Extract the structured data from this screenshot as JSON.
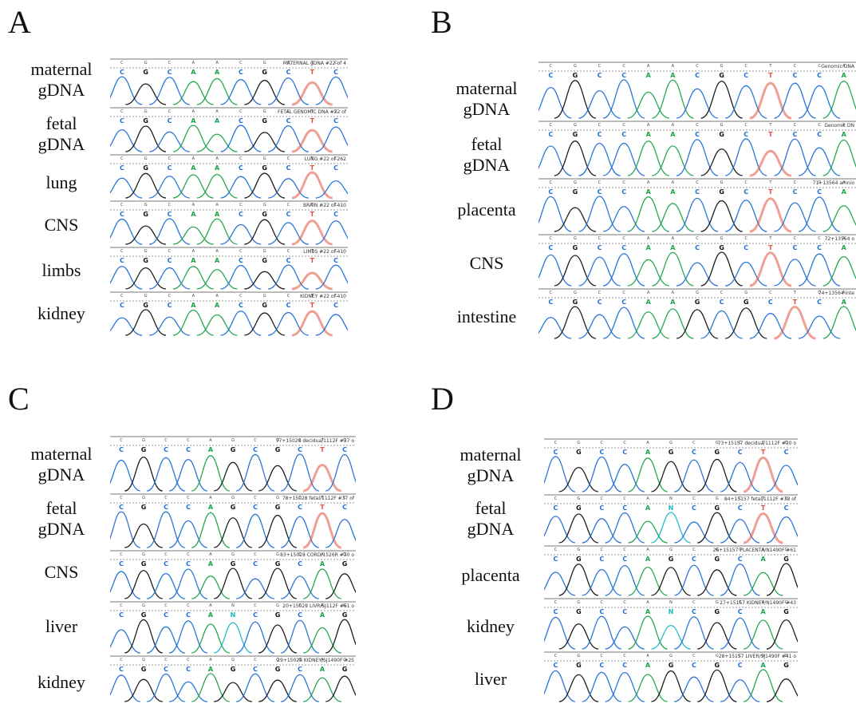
{
  "colors": {
    "A": "#1aa34a",
    "C": "#1f6fd6",
    "G": "#111111",
    "T": "#e0523e",
    "N": "#19b6c8"
  },
  "panels": [
    {
      "letter": "A",
      "tracks": [
        {
          "label": [
            "maternal",
            "gDNA"
          ],
          "header": "MATERNAL gDNA #22 of 4",
          "bases": "CGCAACGCTC"
        },
        {
          "label": [
            "fetal",
            "gDNA"
          ],
          "header": "FETAL GENOMIC DNA #22 of",
          "bases": "CGCAACGCTC"
        },
        {
          "label": [
            "lung"
          ],
          "header": "LUNG #22 of 262",
          "bases": "CGCAACGCTC"
        },
        {
          "label": [
            "CNS"
          ],
          "header": "BRAIN #22 of 410",
          "bases": "CGCAACGCTC"
        },
        {
          "label": [
            "limbs"
          ],
          "header": "LIMBS #22 of 410",
          "bases": "CGCAACGCTC"
        },
        {
          "label": [
            "kidney"
          ],
          "header": "KIDNEY #22 of 410",
          "bases": "CGCAACGCTC"
        }
      ]
    },
    {
      "letter": "B",
      "tracks": [
        {
          "label": [
            "maternal",
            "gDNA"
          ],
          "header": "Genomic DNA",
          "bases": "CGCCAACGCTCCA"
        },
        {
          "label": [
            "fetal",
            "gDNA"
          ],
          "header": "Genomic DN",
          "bases": "CGCCAACGCTCCA"
        },
        {
          "label": [
            "placenta"
          ],
          "header": "71+13564 amnio",
          "bases": "CGCCAACGCTCCA"
        },
        {
          "label": [
            "CNS"
          ],
          "header": "72+13564 o",
          "bases": "CGCCAACGCTCCA"
        },
        {
          "label": [
            "intestine"
          ],
          "header": "74+13564 inte",
          "bases": "CGCCAAGCGCTCA"
        }
      ]
    },
    {
      "letter": "C",
      "tracks": [
        {
          "label": [
            "maternal",
            "gDNA"
          ],
          "header": "77+15028 decidua/1112F #37 o",
          "bases": "CGCCAGCGCTC"
        },
        {
          "label": [
            "fetal",
            "gDNA"
          ],
          "header": "78+15028 fetal/1112F #37 of",
          "bases": "CGCCAGCGCTC"
        },
        {
          "label": [
            "CNS"
          ],
          "header": "83+15028 CORD/1526R #30 o",
          "bases": "CGCCAGCGCAG"
        },
        {
          "label": [
            "liver"
          ],
          "header": "20+15028 LIVR/SJ112F #61 o",
          "bases": "CGCCANCGCAG"
        },
        {
          "label": [
            "kidney"
          ],
          "header": "29+15028 KIDNEY/SJ1490F #25",
          "bases": "CGCCAGCGCAG"
        }
      ]
    },
    {
      "letter": "D",
      "tracks": [
        {
          "label": [
            "maternal",
            "gDNA"
          ],
          "header": "73+15157 decidua/1112F #30 o",
          "bases": "CGCCAGCGCTC"
        },
        {
          "label": [
            "fetal",
            "gDNA"
          ],
          "header": "84+15157 fetal/1112F #38 of",
          "bases": "CGCCANCGCTC"
        },
        {
          "label": [
            "placenta"
          ],
          "header": "26+15157 PLACENTA/N1490F #61",
          "bases": "CGCCAGCGCAG"
        },
        {
          "label": [
            "kidney"
          ],
          "header": "27+15157 KIDNEY/N1490F #43",
          "bases": "CGCCANCGCAG"
        },
        {
          "label": [
            "liver"
          ],
          "header": "28+15157 LIVER/SJ1490F #41 o",
          "bases": "CGCCAGCGCAG"
        }
      ]
    }
  ]
}
